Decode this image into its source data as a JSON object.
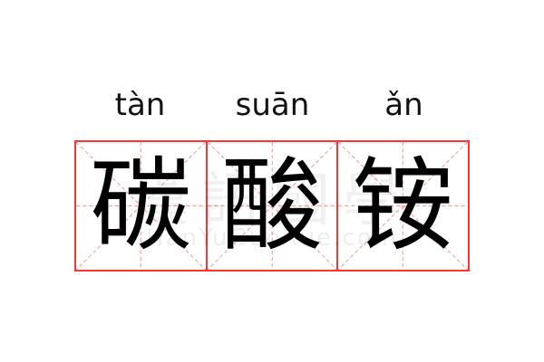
{
  "words": [
    {
      "pinyin": "tàn",
      "char": "碳"
    },
    {
      "pinyin": "suān",
      "char": "酸"
    },
    {
      "pinyin": "ǎn",
      "char": "铵"
    }
  ],
  "watermark": {
    "cn": "漢語國學",
    "en": "HanYuGuoXue.com"
  },
  "colors": {
    "grid_border": "#ff3333",
    "grid_guides": "#f8a0a0",
    "text": "#000000"
  }
}
